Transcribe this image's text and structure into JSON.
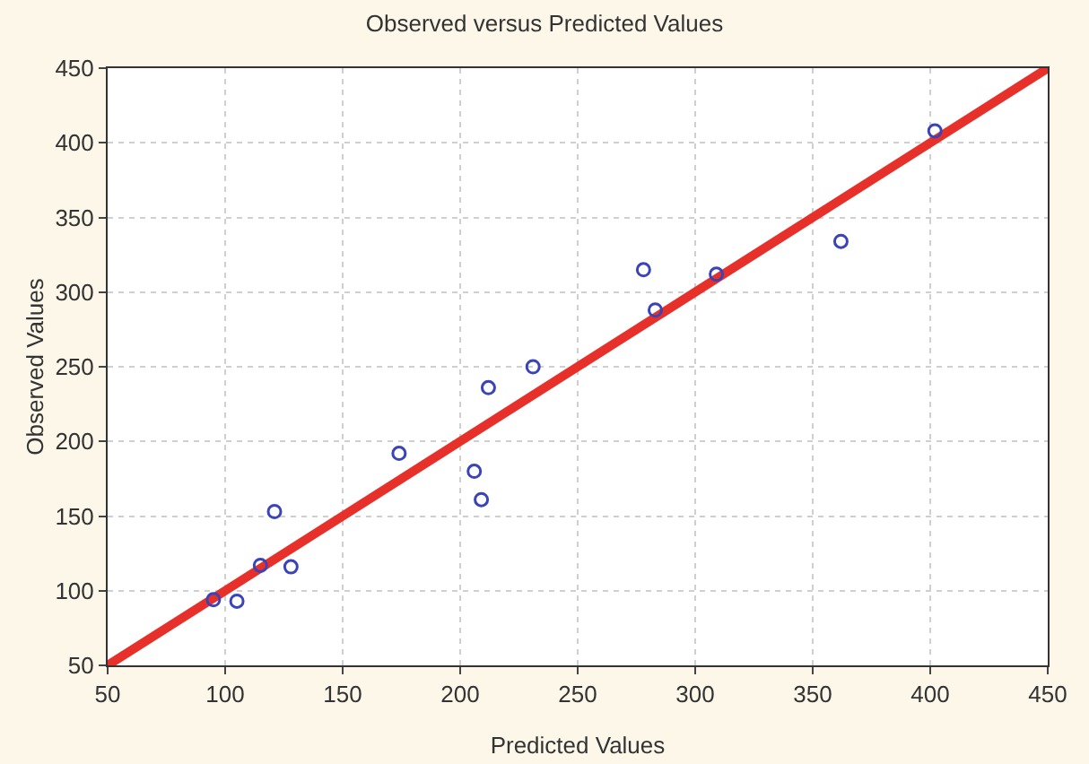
{
  "chart_data": {
    "type": "scatter",
    "title": "Observed versus Predicted Values",
    "xlabel": "Predicted Values",
    "ylabel": "Observed Values",
    "xlim": [
      50,
      450
    ],
    "xticks": [
      50,
      100,
      150,
      200,
      250,
      300,
      350,
      400,
      450
    ],
    "ylim": [
      50,
      450
    ],
    "yticks": [
      50,
      100,
      150,
      200,
      250,
      300,
      350,
      400,
      450
    ],
    "grid": true,
    "series": [
      {
        "color": "#3a44b8",
        "marker": "circle",
        "x": [
          95,
          105,
          115,
          121,
          128,
          174,
          206,
          209,
          212,
          231,
          278,
          283,
          309,
          362,
          402
        ],
        "values": [
          94,
          93,
          117,
          153,
          116,
          192,
          180,
          161,
          236,
          250,
          315,
          288,
          312,
          334,
          408
        ]
      },
      {
        "type": "line",
        "color": "#e8302a",
        "marker": "none",
        "line_style": "solid",
        "x": [
          50,
          450
        ],
        "values": [
          50,
          450
        ]
      }
    ]
  }
}
